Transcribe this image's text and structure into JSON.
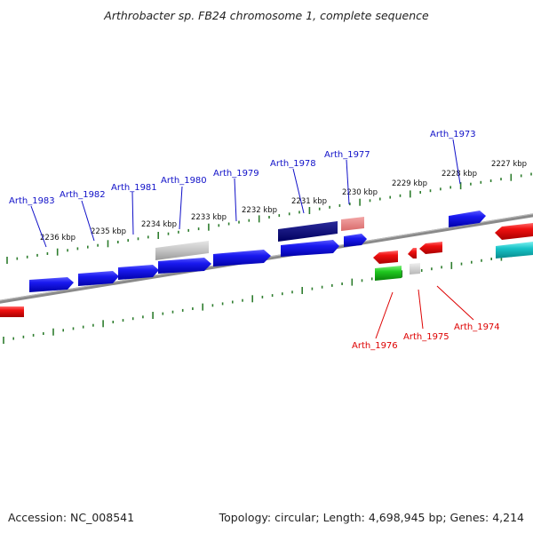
{
  "title": "Arthrobacter sp. FB24 chromosome 1, complete sequence",
  "footer": {
    "accession": "Accession: NC_008541",
    "summary": "Topology: circular; Length: 4,698,945 bp; Genes: 4,214"
  },
  "colors": {
    "forward_strand_label": "#1010c8",
    "reverse_strand_label": "#dd0000",
    "tick": "#2e7d2e",
    "backbone": "#7a7a7a"
  },
  "kbp_ticks": [
    {
      "label": "2236 kbp"
    },
    {
      "label": "2235 kbp"
    },
    {
      "label": "2234 kbp"
    },
    {
      "label": "2233 kbp"
    },
    {
      "label": "2232 kbp"
    },
    {
      "label": "2231 kbp"
    },
    {
      "label": "2230 kbp"
    },
    {
      "label": "2229 kbp"
    },
    {
      "label": "2228 kbp"
    },
    {
      "label": "2227 kbp"
    }
  ],
  "gene_labels_forward": [
    {
      "name": "Arth_1983"
    },
    {
      "name": "Arth_1982"
    },
    {
      "name": "Arth_1981"
    },
    {
      "name": "Arth_1980"
    },
    {
      "name": "Arth_1979"
    },
    {
      "name": "Arth_1978"
    },
    {
      "name": "Arth_1977"
    },
    {
      "name": "Arth_1973"
    }
  ],
  "gene_labels_reverse": [
    {
      "name": "Arth_1976"
    },
    {
      "name": "Arth_1975"
    },
    {
      "name": "Arth_1974"
    }
  ]
}
